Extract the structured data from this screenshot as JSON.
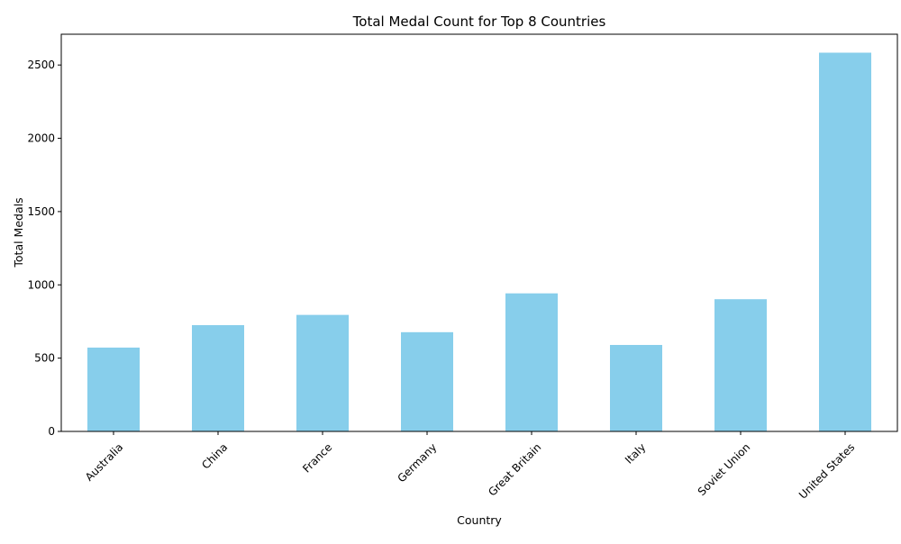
{
  "chart_data": {
    "type": "bar",
    "title": "Total Medal Count for Top 8 Countries",
    "xlabel": "Country",
    "ylabel": "Total Medals",
    "categories": [
      "Australia",
      "China",
      "France",
      "Germany",
      "Great Britain",
      "Italy",
      "Soviet Union",
      "United States"
    ],
    "values": [
      572,
      725,
      795,
      677,
      942,
      590,
      902,
      2584
    ],
    "ylim": [
      0,
      2710
    ],
    "yticks": [
      0,
      500,
      1000,
      1500,
      2000,
      2500
    ],
    "bar_color": "#87ceeb",
    "grid": false,
    "legend": "none",
    "xtick_rotation": 45
  }
}
